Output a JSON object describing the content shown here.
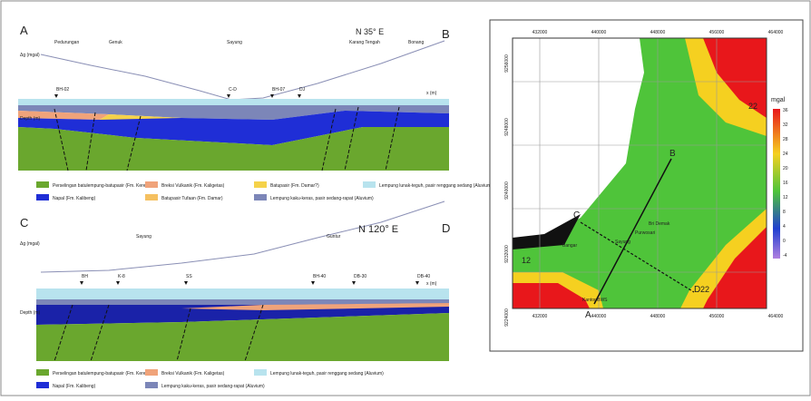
{
  "section_ab": {
    "start": "A",
    "end": "B",
    "bearing": "N 35° E",
    "gravity_label": "Δg (mgal)",
    "x_label": "x (m)",
    "depth_label": "Depth (m)",
    "places": [
      "Pedurungan",
      "Genuk",
      "Sayung",
      "Karang Tengah",
      "Bonang"
    ],
    "boreholes": [
      "BH-02",
      "C-D",
      "BH-07",
      "DJ"
    ],
    "legend": [
      "Perselingan batulempung-batupasir (Fm. Kerek?)",
      "Breksi Vulkanik (Fm. Kaligetas)",
      "Batupasir (Fm. Damar?)",
      "Lempung lunak-teguh, pasir renggang sedang (Aluvium)",
      "Napal (Fm. Kalibeng)",
      "Batupasir Tufaan (Fm. Damar)",
      "Lempung kaku-keras, pasir sedang-rapat (Aluvium)"
    ]
  },
  "section_cd": {
    "start": "C",
    "end": "D",
    "bearing": "N 120° E",
    "gravity_label": "Δg (mgal)",
    "x_label": "x (m)",
    "depth_label": "Depth (m)",
    "places": [
      "Sayung",
      "Guntur"
    ],
    "boreholes": [
      "BH",
      "K-8",
      "SS",
      "BH-40",
      "DB-30",
      "DB-40"
    ],
    "legend": [
      "Perselingan batulempung-batupasir (Fm. Kerek?)",
      "Breksi Vulkanik (Fm. Kaligetas)",
      "Lempung lunak-teguh, pasir renggang sedang (Aluvium)",
      "Napal (Fm. Kalibeng)",
      "Lempung kaku-keras, pasir sedang-rapat (Aluvium)"
    ]
  },
  "map": {
    "x_ticks": [
      "432000",
      "440000",
      "448000",
      "456000",
      "464000"
    ],
    "y_ticks": [
      "9256000",
      "9248000",
      "9240000",
      "9232000",
      "9224000"
    ],
    "unit": "mgal",
    "colorbar": [
      "36",
      "32",
      "28",
      "24",
      "20",
      "16",
      "12",
      "8",
      "4",
      "0",
      "-4"
    ],
    "points": [
      "A",
      "B",
      "C",
      "D"
    ],
    "labels": [
      "Sayung",
      "Bri Demak",
      "Purwosari",
      "Bangar",
      "Kantor BWS",
      "22",
      "22",
      "12"
    ]
  }
}
